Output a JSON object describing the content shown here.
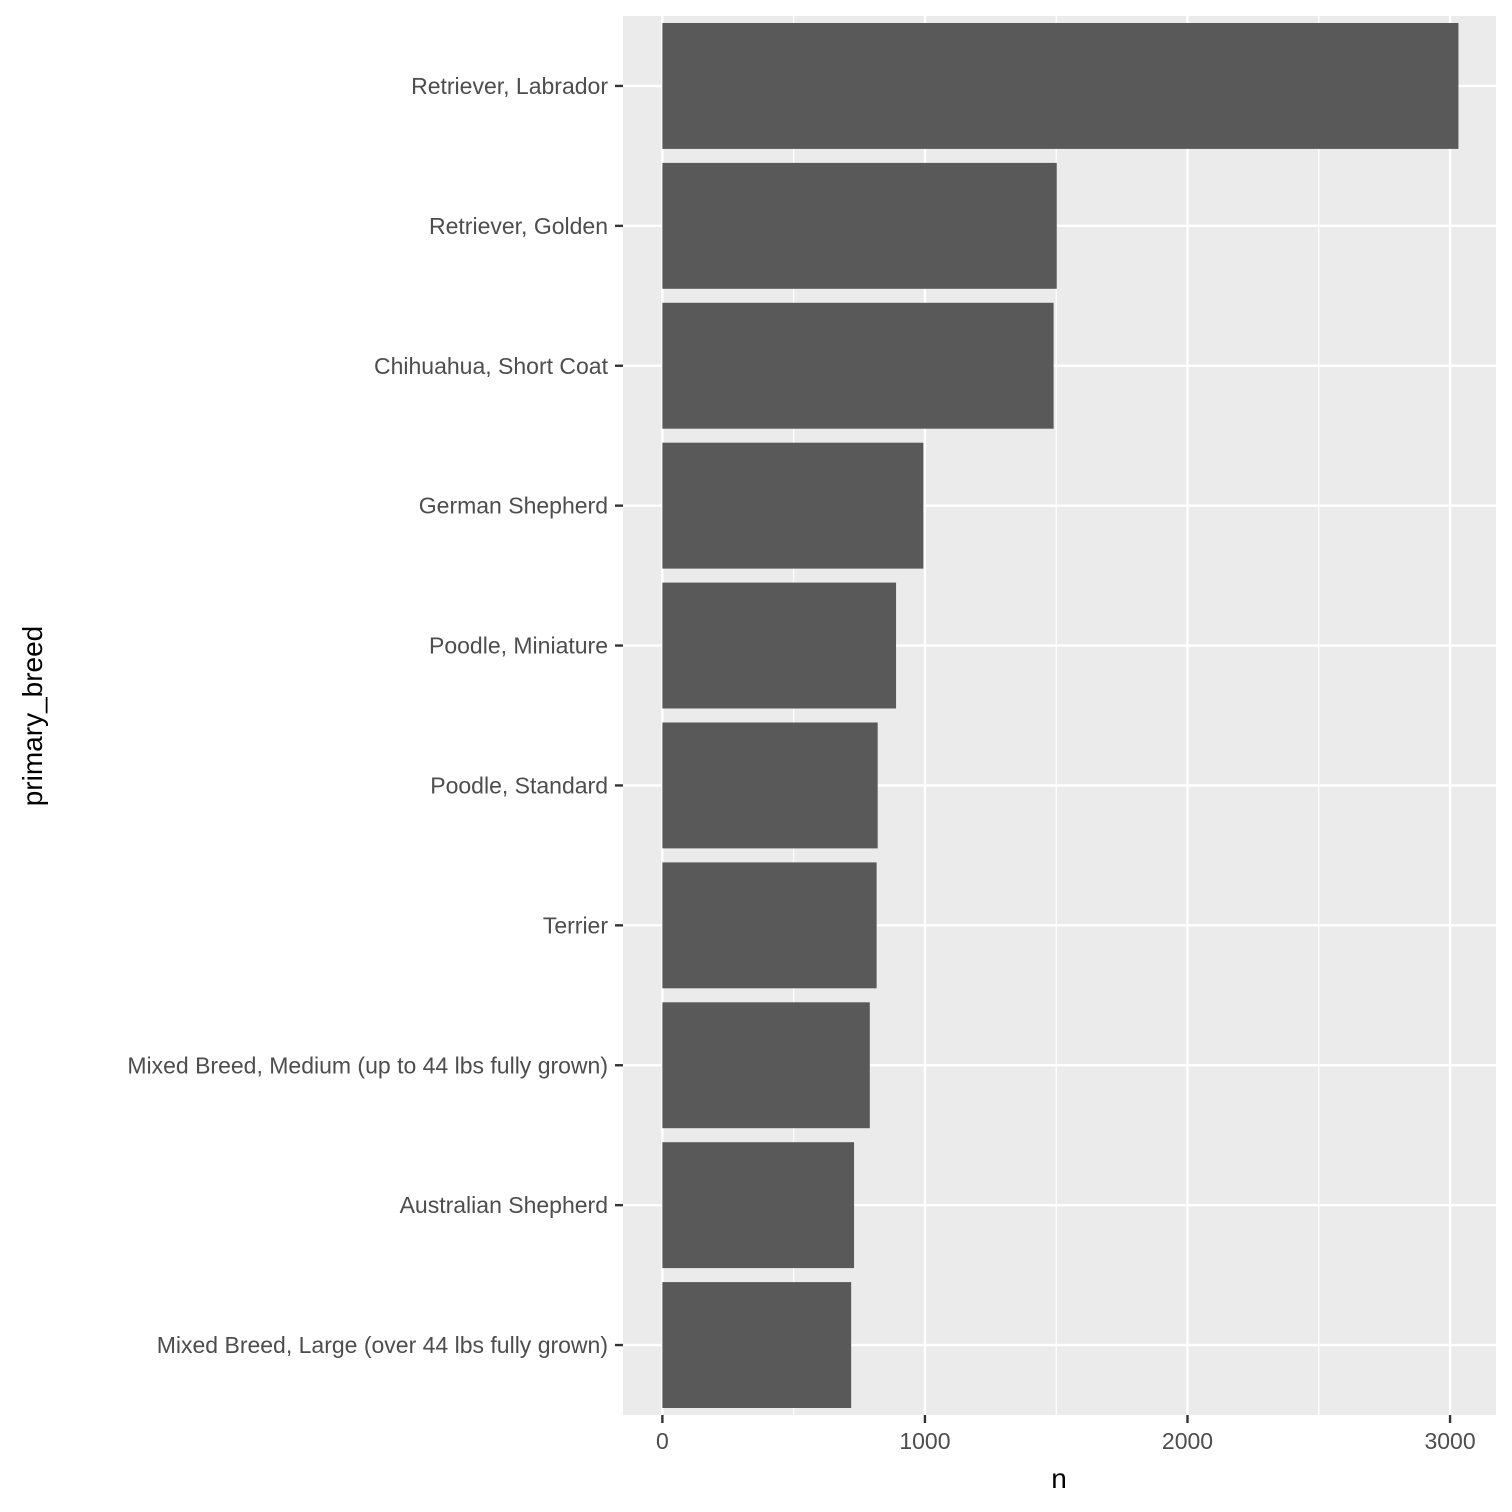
{
  "chart_data": {
    "type": "bar",
    "orientation": "horizontal",
    "title": "",
    "xlabel": "n",
    "ylabel": "primary_breed",
    "xlim": [
      -150,
      3175
    ],
    "xticks": [
      0,
      1000,
      2000,
      3000
    ],
    "x_minor_ticks": [
      500,
      1500,
      2500
    ],
    "grid": true,
    "legend": "none",
    "categories": [
      "Retriever, Labrador",
      "Retriever, Golden",
      "Chihuahua, Short Coat",
      "German Shepherd",
      "Poodle, Miniature",
      "Poodle, Standard",
      "Terrier",
      "Mixed Breed, Medium (up to 44 lbs fully grown)",
      "Australian Shepherd",
      "Mixed Breed, Large (over 44 lbs fully grown)"
    ],
    "values": [
      3032,
      1502,
      1490,
      994,
      890,
      820,
      816,
      790,
      730,
      719
    ],
    "colors": {
      "bar": "#595959",
      "panel": "#ebebeb",
      "grid": "#ffffff"
    }
  }
}
